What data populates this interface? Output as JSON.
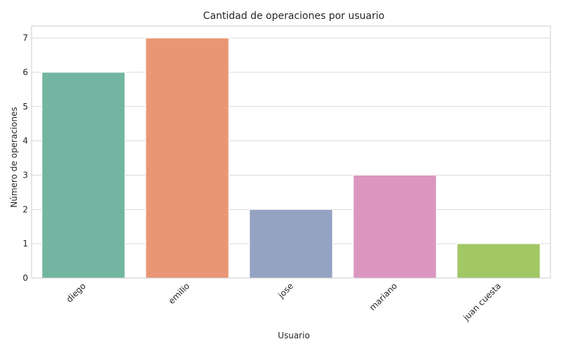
{
  "chart_data": {
    "type": "bar",
    "title": "Cantidad de operaciones por usuario",
    "xlabel": "Usuario",
    "ylabel": "Número de operaciones",
    "categories": [
      "diego",
      "emilio",
      "jose",
      "mariano",
      "juan cuesta"
    ],
    "values": [
      6,
      7,
      2,
      3,
      1
    ],
    "colors": [
      "#72b6a1",
      "#e99675",
      "#95a3c3",
      "#db96c0",
      "#a2c865"
    ],
    "ylim": [
      0,
      7.35
    ],
    "yticks": [
      0,
      1,
      2,
      3,
      4,
      5,
      6,
      7
    ],
    "grid": "horizontal",
    "xtick_rotation": 45
  }
}
